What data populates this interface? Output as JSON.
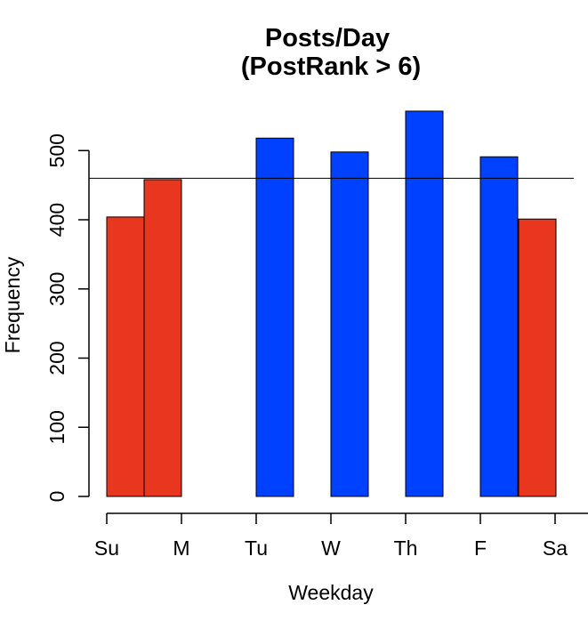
{
  "chart_data": {
    "type": "bar",
    "title": "Posts/Day",
    "subtitle": "(PostRank > 6)",
    "xlabel": "Weekday",
    "ylabel": "Frequency",
    "categories": [
      "Su",
      "M",
      "Tu",
      "W",
      "Th",
      "F",
      "Sa"
    ],
    "values": [
      404,
      458,
      518,
      498,
      557,
      491,
      401
    ],
    "colors": [
      "#e8361f",
      "#e8361f",
      "#0040ff",
      "#0040ff",
      "#0040ff",
      "#0040ff",
      "#e8361f"
    ],
    "yticks": [
      0,
      100,
      200,
      300,
      400,
      500
    ],
    "ylim": [
      0,
      560
    ],
    "reference_line": 460,
    "grid": false,
    "legend": "none"
  }
}
